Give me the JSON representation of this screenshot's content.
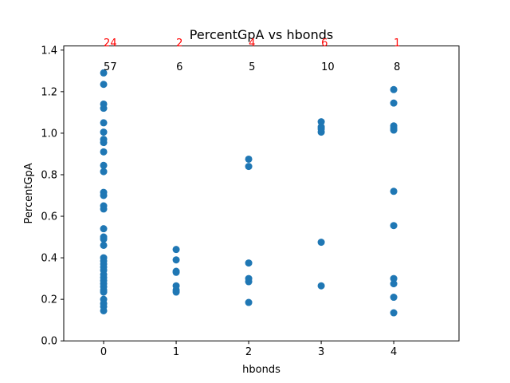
{
  "chart_data": {
    "type": "scatter",
    "title": "PercentGpA vs hbonds",
    "xlabel": "hbonds",
    "ylabel": "PercentGpA",
    "xlim": [
      -0.55,
      4.9
    ],
    "ylim": [
      0,
      1.42
    ],
    "xticks": [
      "0",
      "1",
      "2",
      "3",
      "4"
    ],
    "yticks": [
      "0.0",
      "0.2",
      "0.4",
      "0.6",
      "0.8",
      "1.0",
      "1.2",
      "1.4"
    ],
    "point_color": "#1f77b4",
    "grid": false,
    "annotations_top": [
      {
        "x": 0,
        "text": "24",
        "color": "#ff0000"
      },
      {
        "x": 1,
        "text": "2",
        "color": "#ff0000"
      },
      {
        "x": 2,
        "text": "4",
        "color": "#ff0000"
      },
      {
        "x": 3,
        "text": "6",
        "color": "#ff0000"
      },
      {
        "x": 4,
        "text": "1",
        "color": "#ff0000"
      }
    ],
    "annotations_counts": [
      {
        "x": 0,
        "text": "57",
        "color": "#000000"
      },
      {
        "x": 1,
        "text": "6",
        "color": "#000000"
      },
      {
        "x": 2,
        "text": "5",
        "color": "#000000"
      },
      {
        "x": 3,
        "text": "10",
        "color": "#000000"
      },
      {
        "x": 4,
        "text": "8",
        "color": "#000000"
      }
    ],
    "points": [
      {
        "x": 0,
        "y": 1.29
      },
      {
        "x": 0,
        "y": 1.235
      },
      {
        "x": 0,
        "y": 1.14
      },
      {
        "x": 0,
        "y": 1.12
      },
      {
        "x": 0,
        "y": 1.05
      },
      {
        "x": 0,
        "y": 1.005
      },
      {
        "x": 0,
        "y": 0.97
      },
      {
        "x": 0,
        "y": 0.955
      },
      {
        "x": 0,
        "y": 0.91
      },
      {
        "x": 0,
        "y": 0.845
      },
      {
        "x": 0,
        "y": 0.815
      },
      {
        "x": 0,
        "y": 0.715
      },
      {
        "x": 0,
        "y": 0.7
      },
      {
        "x": 0,
        "y": 0.65
      },
      {
        "x": 0,
        "y": 0.635
      },
      {
        "x": 0,
        "y": 0.54
      },
      {
        "x": 0,
        "y": 0.5
      },
      {
        "x": 0,
        "y": 0.49
      },
      {
        "x": 0,
        "y": 0.46
      },
      {
        "x": 0,
        "y": 0.4
      },
      {
        "x": 0,
        "y": 0.385
      },
      {
        "x": 0,
        "y": 0.37
      },
      {
        "x": 0,
        "y": 0.355
      },
      {
        "x": 0,
        "y": 0.34
      },
      {
        "x": 0,
        "y": 0.32
      },
      {
        "x": 0,
        "y": 0.305
      },
      {
        "x": 0,
        "y": 0.29
      },
      {
        "x": 0,
        "y": 0.275
      },
      {
        "x": 0,
        "y": 0.26
      },
      {
        "x": 0,
        "y": 0.245
      },
      {
        "x": 0,
        "y": 0.235
      },
      {
        "x": 0,
        "y": 0.2
      },
      {
        "x": 0,
        "y": 0.18
      },
      {
        "x": 0,
        "y": 0.165
      },
      {
        "x": 0,
        "y": 0.145
      },
      {
        "x": 1,
        "y": 0.44
      },
      {
        "x": 1,
        "y": 0.39
      },
      {
        "x": 1,
        "y": 0.335
      },
      {
        "x": 1,
        "y": 0.33
      },
      {
        "x": 1,
        "y": 0.265
      },
      {
        "x": 1,
        "y": 0.245
      },
      {
        "x": 1,
        "y": 0.235
      },
      {
        "x": 2,
        "y": 0.875
      },
      {
        "x": 2,
        "y": 0.84
      },
      {
        "x": 2,
        "y": 0.375
      },
      {
        "x": 2,
        "y": 0.3
      },
      {
        "x": 2,
        "y": 0.285
      },
      {
        "x": 2,
        "y": 0.185
      },
      {
        "x": 3,
        "y": 1.055
      },
      {
        "x": 3,
        "y": 1.03
      },
      {
        "x": 3,
        "y": 1.02
      },
      {
        "x": 3,
        "y": 1.005
      },
      {
        "x": 3,
        "y": 0.475
      },
      {
        "x": 3,
        "y": 0.265
      },
      {
        "x": 4,
        "y": 1.21
      },
      {
        "x": 4,
        "y": 1.145
      },
      {
        "x": 4,
        "y": 1.035
      },
      {
        "x": 4,
        "y": 1.025
      },
      {
        "x": 4,
        "y": 1.015
      },
      {
        "x": 4,
        "y": 0.72
      },
      {
        "x": 4,
        "y": 0.555
      },
      {
        "x": 4,
        "y": 0.3
      },
      {
        "x": 4,
        "y": 0.275
      },
      {
        "x": 4,
        "y": 0.21
      },
      {
        "x": 4,
        "y": 0.135
      }
    ]
  }
}
